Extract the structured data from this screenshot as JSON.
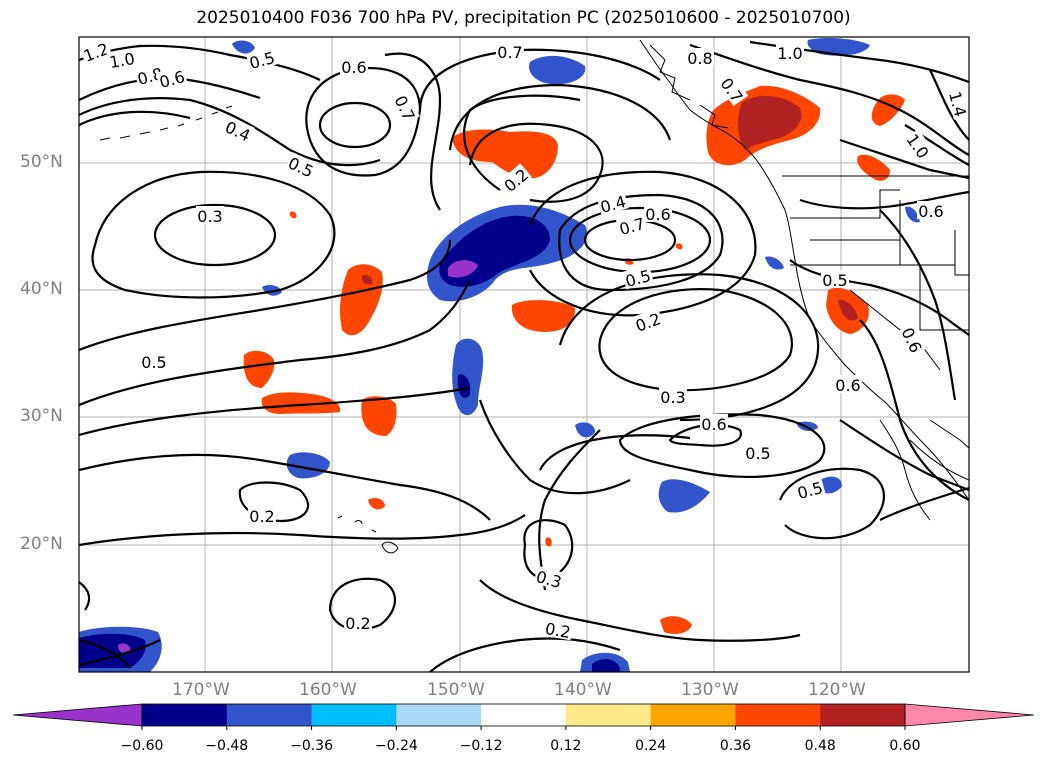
{
  "title": "2025010400 F036 700 hPa PV, precipitation PC (2025010600 - 2025010700)",
  "lat_labels": [
    "50°N",
    "40°N",
    "30°N",
    "20°N"
  ],
  "lon_labels": [
    "170°W",
    "160°W",
    "150°W",
    "140°W",
    "130°W",
    "120°W"
  ],
  "colorbar": {
    "colors": [
      "#9933cc",
      "#00008b",
      "#3355cc",
      "#00bfff",
      "#add8f5",
      "#ffffff",
      "#ffe88a",
      "#ffa500",
      "#ff4500",
      "#b22222",
      "#ff88aa"
    ],
    "ticks": [
      "−0.60",
      "−0.48",
      "−0.36",
      "−0.24",
      "−0.12",
      "0.12",
      "0.24",
      "0.36",
      "0.48",
      "0.60"
    ]
  },
  "contour_labels": [
    "1.2",
    "1.0",
    "0.8",
    "0.6",
    "0.5",
    "0.6",
    "0.7",
    "0.8",
    "1.0",
    "0.4",
    "0.5",
    "0.3",
    "0.7",
    "0.2",
    "0.4",
    "0.7",
    "0.6",
    "0.5",
    "0.2",
    "0.3",
    "0.6",
    "0.5",
    "0.5",
    "0.5",
    "0.6",
    "0.6",
    "0.6",
    "0.5",
    "0.2",
    "0.3",
    "0.2",
    "0.2",
    "1.0",
    "1.4",
    "0.7"
  ]
}
